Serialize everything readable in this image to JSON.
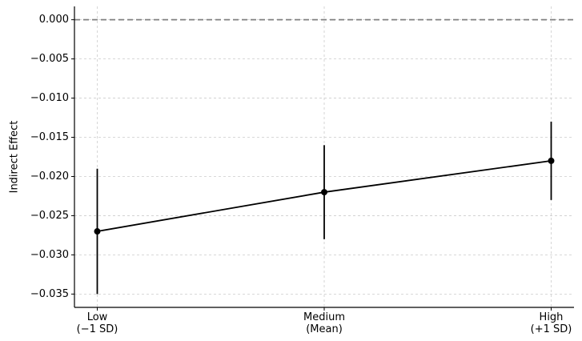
{
  "chart_data": {
    "type": "line",
    "y_label": "Indirect Effect",
    "categories": [
      "Low\n(−1 SD)",
      "Medium\n(Mean)",
      "High\n(+1 SD)"
    ],
    "values": [
      -0.027,
      -0.022,
      -0.018
    ],
    "errors": [
      0.008,
      0.006,
      0.005
    ],
    "color": "#000000",
    "reference_line": 0,
    "ylim": [
      -0.0367,
      0.0017
    ],
    "yticks": [
      {
        "value": 0,
        "label": "0.000"
      },
      {
        "value": -0.005,
        "label": "−0.005"
      },
      {
        "value": -0.01,
        "label": "−0.010"
      },
      {
        "value": -0.015,
        "label": "−0.015"
      },
      {
        "value": -0.02,
        "label": "−0.020"
      },
      {
        "value": -0.025,
        "label": "−0.025"
      },
      {
        "value": -0.03,
        "label": "−0.030"
      },
      {
        "value": -0.035,
        "label": "−0.035"
      }
    ],
    "grid": true
  }
}
